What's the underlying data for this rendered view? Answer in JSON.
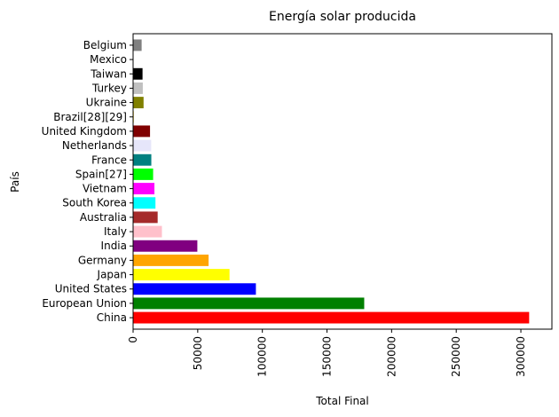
{
  "chart_data": {
    "type": "bar",
    "orientation": "horizontal",
    "title": "Energía solar producida",
    "xlabel": "Total Final",
    "ylabel": "País",
    "xlim": [
      0,
      324000
    ],
    "xticks": [
      0,
      50000,
      100000,
      150000,
      200000,
      250000,
      300000
    ],
    "xtick_labels": [
      "0",
      "50000",
      "100000",
      "150000",
      "200000",
      "250000",
      "300000"
    ],
    "grid": false,
    "categories": [
      "China",
      "European Union",
      "United States",
      "Japan",
      "Germany",
      "India",
      "Italy",
      "Australia",
      "South Korea",
      "Vietnam",
      "Spain[27]",
      "France",
      "Netherlands",
      "United Kingdom",
      "Brazil[28][29]",
      "Ukraine",
      "Turkey",
      "Taiwan",
      "Mexico",
      "Belgium"
    ],
    "values": [
      306400,
      178800,
      95000,
      74600,
      58400,
      49700,
      22300,
      19000,
      17300,
      16500,
      15500,
      14100,
      14000,
      13100,
      500,
      8100,
      7500,
      7300,
      300,
      6600
    ],
    "colors": [
      "#ff0000",
      "#008000",
      "#0000ff",
      "#ffff00",
      "#ffa500",
      "#800080",
      "#ffc0cb",
      "#a52a2a",
      "#00ffff",
      "#ff00ff",
      "#00ff00",
      "#008080",
      "#e6e6fa",
      "#800000",
      "#ffd700",
      "#808000",
      "#c0c0c0",
      "#000000",
      "#ffffff",
      "#808080"
    ]
  }
}
